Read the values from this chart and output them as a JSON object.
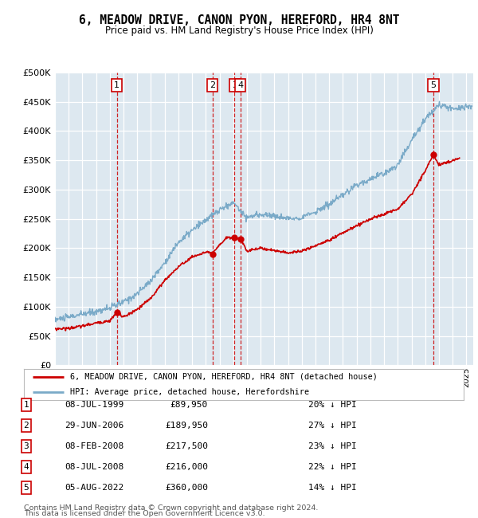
{
  "title": "6, MEADOW DRIVE, CANON PYON, HEREFORD, HR4 8NT",
  "subtitle": "Price paid vs. HM Land Registry's House Price Index (HPI)",
  "ylim": [
    0,
    500000
  ],
  "yticks": [
    0,
    50000,
    100000,
    150000,
    200000,
    250000,
    300000,
    350000,
    400000,
    450000,
    500000
  ],
  "xlim_start": 1995.0,
  "xlim_end": 2025.5,
  "background_color": "#ffffff",
  "plot_bg_color": "#dde8f0",
  "grid_color": "#ffffff",
  "transactions": [
    {
      "num": 1,
      "date_label": "08-JUL-1999",
      "price": 89950,
      "pct": "20% ↓ HPI",
      "year": 1999.52
    },
    {
      "num": 2,
      "date_label": "29-JUN-2006",
      "price": 189950,
      "pct": "27% ↓ HPI",
      "year": 2006.49
    },
    {
      "num": 3,
      "date_label": "08-FEB-2008",
      "price": 217500,
      "pct": "23% ↓ HPI",
      "year": 2008.1
    },
    {
      "num": 4,
      "date_label": "08-JUL-2008",
      "price": 216000,
      "pct": "22% ↓ HPI",
      "year": 2008.52
    },
    {
      "num": 5,
      "date_label": "05-AUG-2022",
      "price": 360000,
      "pct": "14% ↓ HPI",
      "year": 2022.59
    }
  ],
  "legend_line1": "6, MEADOW DRIVE, CANON PYON, HEREFORD, HR4 8NT (detached house)",
  "legend_line2": "HPI: Average price, detached house, Herefordshire",
  "footer1": "Contains HM Land Registry data © Crown copyright and database right 2024.",
  "footer2": "This data is licensed under the Open Government Licence v3.0.",
  "red_line_color": "#cc0000",
  "blue_line_color": "#7aaac8",
  "marker_color": "#cc0000",
  "hpi_anchors_x": [
    1995.0,
    1996.0,
    1997.0,
    1998.0,
    1999.0,
    2000.0,
    2001.0,
    2002.0,
    2003.0,
    2004.0,
    2005.0,
    2006.0,
    2007.0,
    2008.0,
    2009.0,
    2010.0,
    2011.0,
    2012.0,
    2013.0,
    2014.0,
    2015.0,
    2016.0,
    2017.0,
    2018.0,
    2019.0,
    2020.0,
    2021.0,
    2022.0,
    2022.5,
    2023.0,
    2023.5,
    2024.0,
    2024.5,
    2025.0,
    2025.4
  ],
  "hpi_anchors_y": [
    78000,
    82000,
    87000,
    92000,
    98000,
    108000,
    122000,
    145000,
    175000,
    210000,
    230000,
    248000,
    265000,
    278000,
    252000,
    258000,
    255000,
    250000,
    253000,
    262000,
    275000,
    290000,
    308000,
    318000,
    328000,
    342000,
    385000,
    420000,
    435000,
    445000,
    442000,
    438000,
    440000,
    442000,
    443000
  ],
  "red_anchors_x": [
    1995.0,
    1996.0,
    1997.0,
    1998.0,
    1999.0,
    1999.52,
    2000.0,
    2001.0,
    2002.0,
    2003.0,
    2004.0,
    2005.0,
    2006.0,
    2006.49,
    2007.0,
    2007.5,
    2008.1,
    2008.52,
    2009.0,
    2010.0,
    2011.0,
    2012.0,
    2013.0,
    2014.0,
    2015.0,
    2016.0,
    2017.0,
    2018.0,
    2019.0,
    2020.0,
    2021.0,
    2022.0,
    2022.59,
    2023.0,
    2023.5,
    2024.0,
    2024.5
  ],
  "red_anchors_y": [
    62000,
    63000,
    67000,
    72000,
    76000,
    89950,
    82000,
    95000,
    115000,
    145000,
    168000,
    185000,
    193000,
    189950,
    205000,
    218000,
    217500,
    216000,
    195000,
    200000,
    196000,
    192000,
    195000,
    204000,
    214000,
    226000,
    238000,
    250000,
    258000,
    267000,
    292000,
    332000,
    360000,
    342000,
    346000,
    350000,
    354000
  ]
}
